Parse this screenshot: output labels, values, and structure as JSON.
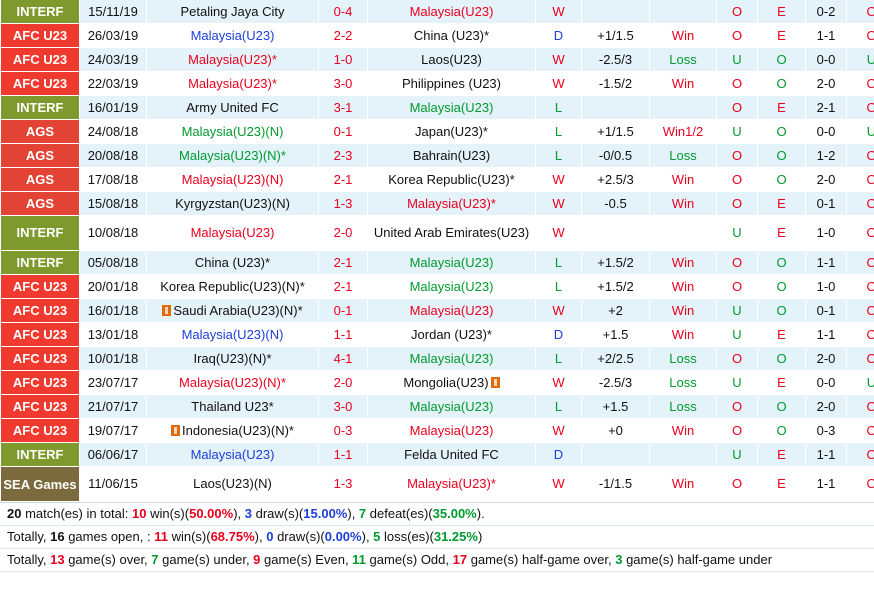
{
  "matches": [
    {
      "comp": "INTERF",
      "comp_class": "interf",
      "date": "15/11/19",
      "home": "Petaling Jaya City",
      "home_color": "black",
      "home_flag": false,
      "score": "0-4",
      "away": "Malaysia(U23)",
      "away_color": "red",
      "away_flag": false,
      "result": "W",
      "handicap": "",
      "hc_result": "",
      "hc_color": "red",
      "ou": "O",
      "ou_color": "red",
      "oe": "E",
      "oe_color": "red",
      "ht": "0-2",
      "ht_ou": "O",
      "ht_ou_color": "red"
    },
    {
      "comp": "AFC U23",
      "comp_class": "afc",
      "date": "26/03/19",
      "home": "Malaysia(U23)",
      "home_color": "blue",
      "home_flag": false,
      "score": "2-2",
      "away": "China (U23)*",
      "away_color": "black",
      "away_flag": false,
      "result": "D",
      "handicap": "+1/1.5",
      "hc_result": "Win",
      "hc_color": "red",
      "ou": "O",
      "ou_color": "red",
      "oe": "E",
      "oe_color": "red",
      "ht": "1-1",
      "ht_ou": "O",
      "ht_ou_color": "red"
    },
    {
      "comp": "AFC U23",
      "comp_class": "afc",
      "date": "24/03/19",
      "home": "Malaysia(U23)*",
      "home_color": "red",
      "home_flag": false,
      "score": "1-0",
      "away": "Laos(U23)",
      "away_color": "black",
      "away_flag": false,
      "result": "W",
      "handicap": "-2.5/3",
      "hc_result": "Loss",
      "hc_color": "green",
      "ou": "U",
      "ou_color": "green",
      "oe": "O",
      "oe_color": "green",
      "ht": "0-0",
      "ht_ou": "U",
      "ht_ou_color": "green"
    },
    {
      "comp": "AFC U23",
      "comp_class": "afc",
      "date": "22/03/19",
      "home": "Malaysia(U23)*",
      "home_color": "red",
      "home_flag": false,
      "score": "3-0",
      "away": "Philippines (U23)",
      "away_color": "black",
      "away_flag": false,
      "result": "W",
      "handicap": "-1.5/2",
      "hc_result": "Win",
      "hc_color": "red",
      "ou": "O",
      "ou_color": "red",
      "oe": "O",
      "oe_color": "green",
      "ht": "2-0",
      "ht_ou": "O",
      "ht_ou_color": "red"
    },
    {
      "comp": "INTERF",
      "comp_class": "interf",
      "date": "16/01/19",
      "home": "Army United FC",
      "home_color": "black",
      "home_flag": false,
      "score": "3-1",
      "away": "Malaysia(U23)",
      "away_color": "green",
      "away_flag": false,
      "result": "L",
      "handicap": "",
      "hc_result": "",
      "hc_color": "red",
      "ou": "O",
      "ou_color": "red",
      "oe": "E",
      "oe_color": "red",
      "ht": "2-1",
      "ht_ou": "O",
      "ht_ou_color": "red"
    },
    {
      "comp": "AGS",
      "comp_class": "ags",
      "date": "24/08/18",
      "home": "Malaysia(U23)(N)",
      "home_color": "green",
      "home_flag": false,
      "score": "0-1",
      "away": "Japan(U23)*",
      "away_color": "black",
      "away_flag": false,
      "result": "L",
      "handicap": "+1/1.5",
      "hc_result": "Win1/2",
      "hc_color": "red",
      "ou": "U",
      "ou_color": "green",
      "oe": "O",
      "oe_color": "green",
      "ht": "0-0",
      "ht_ou": "U",
      "ht_ou_color": "green"
    },
    {
      "comp": "AGS",
      "comp_class": "ags",
      "date": "20/08/18",
      "home": "Malaysia(U23)(N)*",
      "home_color": "green",
      "home_flag": false,
      "score": "2-3",
      "away": "Bahrain(U23)",
      "away_color": "black",
      "away_flag": false,
      "result": "L",
      "handicap": "-0/0.5",
      "hc_result": "Loss",
      "hc_color": "green",
      "ou": "O",
      "ou_color": "red",
      "oe": "O",
      "oe_color": "green",
      "ht": "1-2",
      "ht_ou": "O",
      "ht_ou_color": "red"
    },
    {
      "comp": "AGS",
      "comp_class": "ags",
      "date": "17/08/18",
      "home": "Malaysia(U23)(N)",
      "home_color": "red",
      "home_flag": false,
      "score": "2-1",
      "away": "Korea Republic(U23)*",
      "away_color": "black",
      "away_flag": false,
      "result": "W",
      "handicap": "+2.5/3",
      "hc_result": "Win",
      "hc_color": "red",
      "ou": "O",
      "ou_color": "red",
      "oe": "O",
      "oe_color": "green",
      "ht": "2-0",
      "ht_ou": "O",
      "ht_ou_color": "red"
    },
    {
      "comp": "AGS",
      "comp_class": "ags",
      "date": "15/08/18",
      "home": "Kyrgyzstan(U23)(N)",
      "home_color": "black",
      "home_flag": false,
      "score": "1-3",
      "away": "Malaysia(U23)*",
      "away_color": "red",
      "away_flag": false,
      "result": "W",
      "handicap": "-0.5",
      "hc_result": "Win",
      "hc_color": "red",
      "ou": "O",
      "ou_color": "red",
      "oe": "E",
      "oe_color": "red",
      "ht": "0-1",
      "ht_ou": "O",
      "ht_ou_color": "red"
    },
    {
      "comp": "INTERF",
      "comp_class": "interf",
      "date": "10/08/18",
      "home": "Malaysia(U23)",
      "home_color": "red",
      "home_flag": false,
      "score": "2-0",
      "away": "United Arab Emirates(U23)",
      "away_color": "black",
      "away_flag": false,
      "result": "W",
      "handicap": "",
      "hc_result": "",
      "hc_color": "red",
      "ou": "U",
      "ou_color": "green",
      "oe": "E",
      "oe_color": "red",
      "ht": "1-0",
      "ht_ou": "O",
      "ht_ou_color": "red",
      "tall": true
    },
    {
      "comp": "INTERF",
      "comp_class": "interf",
      "date": "05/08/18",
      "home": "China (U23)*",
      "home_color": "black",
      "home_flag": false,
      "score": "2-1",
      "away": "Malaysia(U23)",
      "away_color": "green",
      "away_flag": false,
      "result": "L",
      "handicap": "+1.5/2",
      "hc_result": "Win",
      "hc_color": "red",
      "ou": "O",
      "ou_color": "red",
      "oe": "O",
      "oe_color": "green",
      "ht": "1-1",
      "ht_ou": "O",
      "ht_ou_color": "red"
    },
    {
      "comp": "AFC U23",
      "comp_class": "afc",
      "date": "20/01/18",
      "home": "Korea Republic(U23)(N)*",
      "home_color": "black",
      "home_flag": false,
      "score": "2-1",
      "away": "Malaysia(U23)",
      "away_color": "green",
      "away_flag": false,
      "result": "L",
      "handicap": "+1.5/2",
      "hc_result": "Win",
      "hc_color": "red",
      "ou": "O",
      "ou_color": "red",
      "oe": "O",
      "oe_color": "green",
      "ht": "1-0",
      "ht_ou": "O",
      "ht_ou_color": "red"
    },
    {
      "comp": "AFC U23",
      "comp_class": "afc",
      "date": "16/01/18",
      "home": "Saudi Arabia(U23)(N)*",
      "home_color": "black",
      "home_flag": true,
      "score": "0-1",
      "away": "Malaysia(U23)",
      "away_color": "red",
      "away_flag": false,
      "result": "W",
      "handicap": "+2",
      "hc_result": "Win",
      "hc_color": "red",
      "ou": "U",
      "ou_color": "green",
      "oe": "O",
      "oe_color": "green",
      "ht": "0-1",
      "ht_ou": "O",
      "ht_ou_color": "red"
    },
    {
      "comp": "AFC U23",
      "comp_class": "afc",
      "date": "13/01/18",
      "home": "Malaysia(U23)(N)",
      "home_color": "blue",
      "home_flag": false,
      "score": "1-1",
      "away": "Jordan (U23)*",
      "away_color": "black",
      "away_flag": false,
      "result": "D",
      "handicap": "+1.5",
      "hc_result": "Win",
      "hc_color": "red",
      "ou": "U",
      "ou_color": "green",
      "oe": "E",
      "oe_color": "red",
      "ht": "1-1",
      "ht_ou": "O",
      "ht_ou_color": "red"
    },
    {
      "comp": "AFC U23",
      "comp_class": "afc",
      "date": "10/01/18",
      "home": "Iraq(U23)(N)*",
      "home_color": "black",
      "home_flag": false,
      "score": "4-1",
      "away": "Malaysia(U23)",
      "away_color": "green",
      "away_flag": false,
      "result": "L",
      "handicap": "+2/2.5",
      "hc_result": "Loss",
      "hc_color": "green",
      "ou": "O",
      "ou_color": "red",
      "oe": "O",
      "oe_color": "green",
      "ht": "2-0",
      "ht_ou": "O",
      "ht_ou_color": "red"
    },
    {
      "comp": "AFC U23",
      "comp_class": "afc",
      "date": "23/07/17",
      "home": "Malaysia(U23)(N)*",
      "home_color": "red",
      "home_flag": false,
      "score": "2-0",
      "away": "Mongolia(U23)",
      "away_color": "black",
      "away_flag": true,
      "result": "W",
      "handicap": "-2.5/3",
      "hc_result": "Loss",
      "hc_color": "green",
      "ou": "U",
      "ou_color": "green",
      "oe": "E",
      "oe_color": "red",
      "ht": "0-0",
      "ht_ou": "U",
      "ht_ou_color": "green"
    },
    {
      "comp": "AFC U23",
      "comp_class": "afc",
      "date": "21/07/17",
      "home": "Thailand U23*",
      "home_color": "black",
      "home_flag": false,
      "score": "3-0",
      "away": "Malaysia(U23)",
      "away_color": "green",
      "away_flag": false,
      "result": "L",
      "handicap": "+1.5",
      "hc_result": "Loss",
      "hc_color": "green",
      "ou": "O",
      "ou_color": "red",
      "oe": "O",
      "oe_color": "green",
      "ht": "2-0",
      "ht_ou": "O",
      "ht_ou_color": "red"
    },
    {
      "comp": "AFC U23",
      "comp_class": "afc",
      "date": "19/07/17",
      "home": "Indonesia(U23)(N)*",
      "home_color": "black",
      "home_flag": true,
      "score": "0-3",
      "away": "Malaysia(U23)",
      "away_color": "red",
      "away_flag": false,
      "result": "W",
      "handicap": "+0",
      "hc_result": "Win",
      "hc_color": "red",
      "ou": "O",
      "ou_color": "red",
      "oe": "O",
      "oe_color": "green",
      "ht": "0-3",
      "ht_ou": "O",
      "ht_ou_color": "red"
    },
    {
      "comp": "INTERF",
      "comp_class": "interf",
      "date": "06/06/17",
      "home": "Malaysia(U23)",
      "home_color": "blue",
      "home_flag": false,
      "score": "1-1",
      "away": "Felda United FC",
      "away_color": "black",
      "away_flag": false,
      "result": "D",
      "handicap": "",
      "hc_result": "",
      "hc_color": "red",
      "ou": "U",
      "ou_color": "green",
      "oe": "E",
      "oe_color": "red",
      "ht": "1-1",
      "ht_ou": "O",
      "ht_ou_color": "red"
    },
    {
      "comp": "SEA Games",
      "comp_class": "sea",
      "date": "11/06/15",
      "home": "Laos(U23)(N)",
      "home_color": "black",
      "home_flag": false,
      "score": "1-3",
      "away": "Malaysia(U23)*",
      "away_color": "red",
      "away_flag": false,
      "result": "W",
      "handicap": "-1/1.5",
      "hc_result": "Win",
      "hc_color": "red",
      "ou": "O",
      "ou_color": "red",
      "oe": "E",
      "oe_color": "red",
      "ht": "1-1",
      "ht_ou": "O",
      "ht_ou_color": "red",
      "tall": true
    }
  ],
  "summary": {
    "line1": [
      {
        "t": "20",
        "c": "#111111",
        "b": true
      },
      {
        "t": " match(es) in total: ",
        "c": "#111111"
      },
      {
        "t": "10",
        "c": "#e8001e",
        "b": true
      },
      {
        "t": " win(s)(",
        "c": "#111111"
      },
      {
        "t": "50.00%",
        "c": "#e8001e",
        "b": true
      },
      {
        "t": "), ",
        "c": "#111111"
      },
      {
        "t": "3",
        "c": "#1d3fd6",
        "b": true
      },
      {
        "t": " draw(s)(",
        "c": "#111111"
      },
      {
        "t": "15.00%",
        "c": "#1d3fd6",
        "b": true
      },
      {
        "t": "), ",
        "c": "#111111"
      },
      {
        "t": "7",
        "c": "#009a2e",
        "b": true
      },
      {
        "t": " defeat(es)(",
        "c": "#111111"
      },
      {
        "t": "35.00%",
        "c": "#009a2e",
        "b": true
      },
      {
        "t": ").",
        "c": "#111111"
      }
    ],
    "line2": [
      {
        "t": "Totally, ",
        "c": "#111111"
      },
      {
        "t": "16",
        "c": "#111111",
        "b": true
      },
      {
        "t": " games open, : ",
        "c": "#111111"
      },
      {
        "t": "11",
        "c": "#e8001e",
        "b": true
      },
      {
        "t": " win(s)(",
        "c": "#111111"
      },
      {
        "t": "68.75%",
        "c": "#e8001e",
        "b": true
      },
      {
        "t": "), ",
        "c": "#111111"
      },
      {
        "t": "0",
        "c": "#1d3fd6",
        "b": true
      },
      {
        "t": " draw(s)(",
        "c": "#111111"
      },
      {
        "t": "0.00%",
        "c": "#1d3fd6",
        "b": true
      },
      {
        "t": "), ",
        "c": "#111111"
      },
      {
        "t": "5",
        "c": "#009a2e",
        "b": true
      },
      {
        "t": " loss(es)(",
        "c": "#111111"
      },
      {
        "t": "31.25%",
        "c": "#009a2e",
        "b": true
      },
      {
        "t": ")",
        "c": "#111111"
      }
    ],
    "line3": [
      {
        "t": "Totally, ",
        "c": "#111111"
      },
      {
        "t": "13",
        "c": "#e8001e",
        "b": true
      },
      {
        "t": " game(s) over, ",
        "c": "#111111"
      },
      {
        "t": "7",
        "c": "#009a2e",
        "b": true
      },
      {
        "t": " game(s) under, ",
        "c": "#111111"
      },
      {
        "t": "9",
        "c": "#e8001e",
        "b": true
      },
      {
        "t": " game(s) Even, ",
        "c": "#111111"
      },
      {
        "t": "11",
        "c": "#009a2e",
        "b": true
      },
      {
        "t": " game(s) Odd, ",
        "c": "#111111"
      },
      {
        "t": "17",
        "c": "#e8001e",
        "b": true
      },
      {
        "t": " game(s) half-game over, ",
        "c": "#111111"
      },
      {
        "t": "3",
        "c": "#009a2e",
        "b": true
      },
      {
        "t": " game(s) half-game under",
        "c": "#111111"
      }
    ]
  }
}
